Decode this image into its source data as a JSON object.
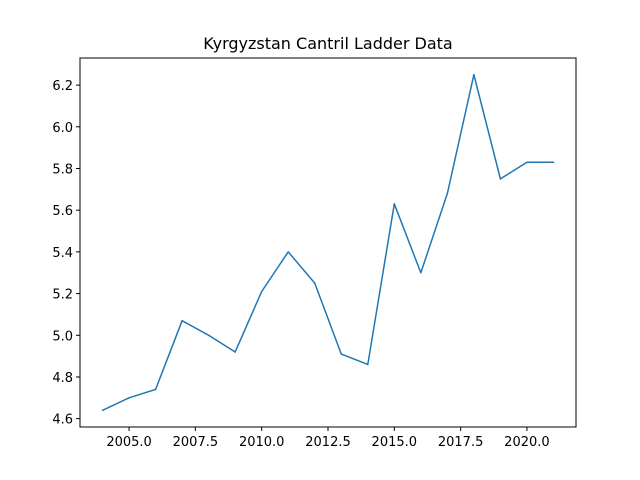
{
  "chart_data": {
    "type": "line",
    "title": "Kyrgyzstan Cantril Ladder Data",
    "xlabel": "",
    "ylabel": "",
    "xlim": [
      2003.15,
      2021.85
    ],
    "ylim": [
      4.56,
      6.33
    ],
    "xticks": [
      2005.0,
      2007.5,
      2010.0,
      2012.5,
      2015.0,
      2017.5,
      2020.0
    ],
    "xtick_labels": [
      "2005.0",
      "2007.5",
      "2010.0",
      "2012.5",
      "2015.0",
      "2017.5",
      "2020.0"
    ],
    "yticks": [
      4.6,
      4.8,
      5.0,
      5.2,
      5.4,
      5.6,
      5.8,
      6.0,
      6.2
    ],
    "ytick_labels": [
      "4.6",
      "4.8",
      "5.0",
      "5.2",
      "5.4",
      "5.6",
      "5.8",
      "6.0",
      "6.2"
    ],
    "grid": false,
    "series": [
      {
        "color": "#1f77b4",
        "x": [
          2004,
          2005,
          2006,
          2007,
          2008,
          2009,
          2010,
          2011,
          2012,
          2013,
          2014,
          2015,
          2016,
          2017,
          2018,
          2019,
          2020,
          2021
        ],
        "y": [
          4.64,
          4.7,
          4.74,
          5.07,
          5.0,
          4.92,
          5.21,
          5.4,
          5.25,
          4.91,
          4.86,
          5.63,
          5.3,
          5.68,
          6.25,
          5.75,
          5.83,
          5.83
        ]
      }
    ]
  }
}
